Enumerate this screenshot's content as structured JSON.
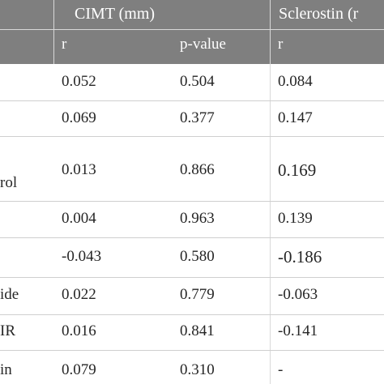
{
  "table": {
    "header": {
      "groups": [
        "CIMT (mm)",
        "Sclerostin (r"
      ],
      "subheaders": [
        "r",
        "p-value",
        "r"
      ]
    },
    "rows": [
      {
        "label": "",
        "cimt_r": "0.052",
        "cimt_p": "0.504",
        "scl_r": "0.084"
      },
      {
        "label": "",
        "cimt_r": "0.069",
        "cimt_p": "0.377",
        "scl_r": "0.147"
      },
      {
        "label": "rol",
        "cimt_r": "0.013",
        "cimt_p": "0.866",
        "scl_r": "0.169"
      },
      {
        "label": "",
        "cimt_r": "0.004",
        "cimt_p": "0.963",
        "scl_r": "0.139"
      },
      {
        "label": "",
        "cimt_r": "-0.043",
        "cimt_p": "0.580",
        "scl_r": "-0.186"
      },
      {
        "label": "ide",
        "cimt_r": "0.022",
        "cimt_p": "0.779",
        "scl_r": "-0.063"
      },
      {
        "label": "IR",
        "cimt_r": "0.016",
        "cimt_p": "0.841",
        "scl_r": "-0.141"
      },
      {
        "label": "in",
        "cimt_r": "0.079",
        "cimt_p": "0.310",
        "scl_r": "-"
      }
    ]
  }
}
